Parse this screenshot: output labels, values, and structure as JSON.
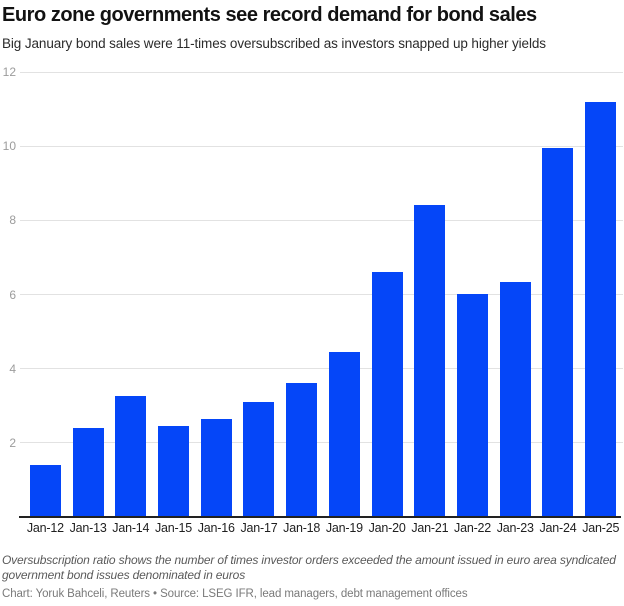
{
  "header": {
    "title": "Euro zone governments see record demand for bond sales",
    "subtitle": "Big January bond sales were 11-times oversubscribed as investors snapped up higher yields"
  },
  "chart_data": {
    "type": "bar",
    "title": "Euro zone governments see record demand for bond sales",
    "subtitle": "Big January bond sales were 11-times oversubscribed as investors snapped up higher yields",
    "categories": [
      "Jan-12",
      "Jan-13",
      "Jan-14",
      "Jan-15",
      "Jan-16",
      "Jan-17",
      "Jan-18",
      "Jan-19",
      "Jan-20",
      "Jan-21",
      "Jan-22",
      "Jan-23",
      "Jan-24",
      "Jan-25"
    ],
    "values": [
      1.4,
      2.4,
      3.25,
      2.45,
      2.65,
      3.1,
      3.6,
      4.45,
      6.6,
      8.4,
      6.0,
      6.35,
      9.95,
      11.2
    ],
    "xlabel": "",
    "ylabel": "",
    "ylim": [
      0,
      12
    ],
    "yticks": [
      2,
      4,
      6,
      8,
      10,
      12
    ],
    "grid": true,
    "legend": false,
    "bar_color": "#0546f8",
    "gridline_color": "#e2e2e2",
    "axis_color": "#222222",
    "tick_label_color": "#9c9c9c"
  },
  "footer": {
    "note": "Oversubscription ratio shows the number of times investor orders exceeded the amount issued in euro area syndicated government bond issues denominated in euros",
    "credit": "Chart: Yoruk Bahceli, Reuters • Source: LSEG IFR, lead managers, debt management offices"
  }
}
